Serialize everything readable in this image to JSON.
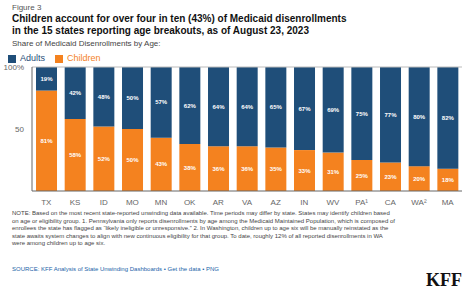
{
  "chart_data": {
    "type": "bar",
    "title": "Children account for over four in ten (43%) of Medicaid disenrollments\nin the 15 states reporting age breakouts, as of August 23, 2023",
    "subtitle": "Share of Medicaid Disenrollments by Age:",
    "categories": [
      "TX",
      "KS",
      "ID",
      "MO",
      "MN",
      "OK",
      "AR",
      "VA",
      "AZ",
      "IN",
      "WV",
      "PA¹",
      "CA",
      "WA²",
      "MA"
    ],
    "series": [
      {
        "name": "Children",
        "color": "#F4821F",
        "values": [
          81,
          58,
          52,
          50,
          43,
          38,
          36,
          36,
          35,
          33,
          31,
          25,
          23,
          20,
          18
        ],
        "value_labels": [
          "81%",
          "58%",
          "52%",
          "50%",
          "43%",
          "38%",
          "36%",
          "36%",
          "35%",
          "33%",
          "31%",
          "25%",
          "23%",
          "20%",
          "18%"
        ]
      },
      {
        "name": "Adults",
        "color": "#1F4E79",
        "values": [
          19,
          42,
          48,
          50,
          57,
          62,
          64,
          64,
          65,
          67,
          69,
          75,
          77,
          80,
          82
        ],
        "value_labels": [
          "19%",
          "42%",
          "48%",
          "50%",
          "57%",
          "62%",
          "64%",
          "64%",
          "65%",
          "67%",
          "69%",
          "75%",
          "77%",
          "80%",
          "82%"
        ]
      }
    ],
    "ylim": [
      0,
      100
    ],
    "yticks": [
      50,
      {
        "value": 100,
        "label": "100%"
      }
    ],
    "stacked": true,
    "data_labels": true,
    "grid": false,
    "legend": "upper left",
    "annotations": [
      "Figure 3",
      "NOTE: Based on the most recent state-reported unwinding data available. Time periods may differ by state. States may identify children based\non age or eligibility group. 1. Pennsylvania only reports disenrollments by age among the Medicaid Maintained Population, which is composed of\nenrollees the state has flagged as “likely ineligible or unresponsive.” 2. In Washington, children up to age six will be manually reinstated as the\nstate awaits system changes to align with new continuous eligibility for that group. To date, roughly 12% of all reported disenrollments in WA\nwere among children up to age six.",
      "SOURCE: KFF Analysis of State Unwinding Dashboards • Get the data • PNG",
      "KFF"
    ]
  }
}
